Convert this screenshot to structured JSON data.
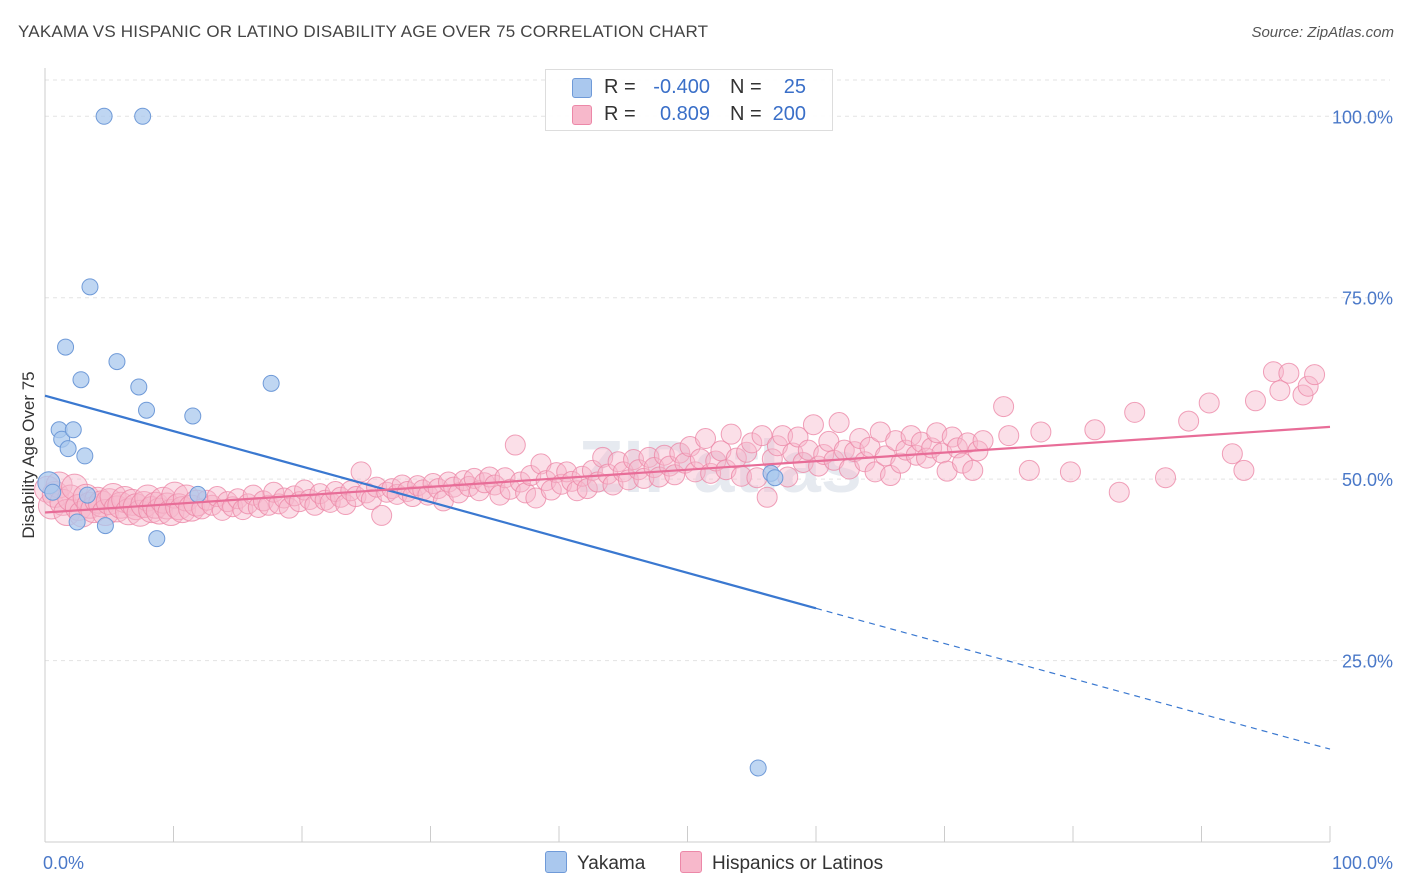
{
  "title": "YAKAMA VS HISPANIC OR LATINO DISABILITY AGE OVER 75 CORRELATION CHART",
  "source": "Source: ZipAtlas.com",
  "watermark": "ZIPatlas",
  "legend": {
    "rows": [
      {
        "r_label": "R =",
        "r_value": "-0.400",
        "n_label": "N =",
        "n_value": "25"
      },
      {
        "r_label": "R =",
        "r_value": "0.809",
        "n_label": "N =",
        "n_value": "200"
      }
    ]
  },
  "bottom_legend": [
    "Yakama",
    "Hispanics or Latinos"
  ],
  "colors": {
    "yakama_fill": "#aac8ee",
    "yakama_stroke": "#6f9ad8",
    "yakama_line": "#3a78d0",
    "hisp_fill": "#f7b8cb",
    "hisp_stroke": "#ec88a8",
    "hisp_line": "#e86d98",
    "tick_label": "#4a78c8"
  },
  "chart_data": {
    "type": "scatter",
    "xlabel": "",
    "ylabel": "Disability Age Over 75",
    "xlim": [
      0,
      100
    ],
    "ylim": [
      0,
      105
    ],
    "x_tick_labels": [
      "0.0%",
      "100.0%"
    ],
    "y_ticks": [
      25,
      50,
      75,
      100
    ],
    "y_tick_labels": [
      "25.0%",
      "50.0%",
      "75.0%",
      "100.0%"
    ],
    "grid": true,
    "series": [
      {
        "name": "Yakama",
        "points": [
          [
            0.3,
            49.5
          ],
          [
            0.6,
            48.2
          ],
          [
            1.1,
            56.8
          ],
          [
            1.3,
            55.5
          ],
          [
            1.6,
            68.2
          ],
          [
            1.8,
            54.2
          ],
          [
            2.2,
            56.8
          ],
          [
            2.5,
            44.1
          ],
          [
            2.8,
            63.7
          ],
          [
            3.1,
            53.2
          ],
          [
            3.3,
            47.8
          ],
          [
            3.5,
            76.5
          ],
          [
            4.6,
            100.0
          ],
          [
            4.7,
            43.6
          ],
          [
            5.6,
            66.2
          ],
          [
            7.3,
            62.7
          ],
          [
            7.6,
            100.0
          ],
          [
            7.9,
            59.5
          ],
          [
            8.7,
            41.8
          ],
          [
            11.5,
            58.7
          ],
          [
            11.9,
            47.9
          ],
          [
            17.6,
            63.2
          ],
          [
            55.5,
            10.2
          ],
          [
            56.5,
            50.8
          ],
          [
            56.8,
            50.2
          ]
        ],
        "trend": {
          "x": [
            0,
            60,
            100
          ],
          "y": [
            61.5,
            32.2,
            12.8
          ],
          "solid_until": 60
        }
      },
      {
        "name": "Hispanics or Latinos",
        "points": [
          [
            0.2,
            48.6
          ],
          [
            0.5,
            46.3
          ],
          [
            0.8,
            47.9
          ],
          [
            1.1,
            49.2
          ],
          [
            1.4,
            46.8
          ],
          [
            1.7,
            45.4
          ],
          [
            2.0,
            47.4
          ],
          [
            2.3,
            48.9
          ],
          [
            2.6,
            46.1
          ],
          [
            2.9,
            45.2
          ],
          [
            3.2,
            47.5
          ],
          [
            3.5,
            46.4
          ],
          [
            3.8,
            45.8
          ],
          [
            4.1,
            47.1
          ],
          [
            4.4,
            46.6
          ],
          [
            4.7,
            45.4
          ],
          [
            5.0,
            46.9
          ],
          [
            5.3,
            47.6
          ],
          [
            5.6,
            45.9
          ],
          [
            5.9,
            46.4
          ],
          [
            6.2,
            47.2
          ],
          [
            6.5,
            45.5
          ],
          [
            6.8,
            46.8
          ],
          [
            7.1,
            46.2
          ],
          [
            7.4,
            45.3
          ],
          [
            7.7,
            46.5
          ],
          [
            8.0,
            47.4
          ],
          [
            8.3,
            45.8
          ],
          [
            8.6,
            46.4
          ],
          [
            8.9,
            45.6
          ],
          [
            9.2,
            47.1
          ],
          [
            9.5,
            46.3
          ],
          [
            9.8,
            45.4
          ],
          [
            10.1,
            47.8
          ],
          [
            10.4,
            46.2
          ],
          [
            10.7,
            45.8
          ],
          [
            11.0,
            47.4
          ],
          [
            11.4,
            46.0
          ],
          [
            11.8,
            46.7
          ],
          [
            12.2,
            45.9
          ],
          [
            12.6,
            47.1
          ],
          [
            13.0,
            46.4
          ],
          [
            13.4,
            47.6
          ],
          [
            13.8,
            45.7
          ],
          [
            14.2,
            46.9
          ],
          [
            14.6,
            46.2
          ],
          [
            15.0,
            47.3
          ],
          [
            15.4,
            45.8
          ],
          [
            15.8,
            46.6
          ],
          [
            16.2,
            47.8
          ],
          [
            16.6,
            46.1
          ],
          [
            17.0,
            47.0
          ],
          [
            17.4,
            46.4
          ],
          [
            17.8,
            48.2
          ],
          [
            18.2,
            46.6
          ],
          [
            18.6,
            47.4
          ],
          [
            19.0,
            46.0
          ],
          [
            19.4,
            47.7
          ],
          [
            19.8,
            46.9
          ],
          [
            20.2,
            48.5
          ],
          [
            20.6,
            47.2
          ],
          [
            21.0,
            46.4
          ],
          [
            21.4,
            48.0
          ],
          [
            21.8,
            47.1
          ],
          [
            22.2,
            46.8
          ],
          [
            22.6,
            48.3
          ],
          [
            23.0,
            47.5
          ],
          [
            23.4,
            46.5
          ],
          [
            23.8,
            48.4
          ],
          [
            24.2,
            47.6
          ],
          [
            24.6,
            51.0
          ],
          [
            25.0,
            48.1
          ],
          [
            25.4,
            47.2
          ],
          [
            25.8,
            48.9
          ],
          [
            26.2,
            45.0
          ],
          [
            26.6,
            48.2
          ],
          [
            27.0,
            48.7
          ],
          [
            27.4,
            47.9
          ],
          [
            27.8,
            49.2
          ],
          [
            28.2,
            48.3
          ],
          [
            28.6,
            47.6
          ],
          [
            29.0,
            49.1
          ],
          [
            29.4,
            48.5
          ],
          [
            29.8,
            47.8
          ],
          [
            30.2,
            49.4
          ],
          [
            30.6,
            48.7
          ],
          [
            31.0,
            47.0
          ],
          [
            31.4,
            49.6
          ],
          [
            31.8,
            48.9
          ],
          [
            32.2,
            48.1
          ],
          [
            32.6,
            49.8
          ],
          [
            33.0,
            49.0
          ],
          [
            33.4,
            50.1
          ],
          [
            33.8,
            48.4
          ],
          [
            34.2,
            49.5
          ],
          [
            34.6,
            50.3
          ],
          [
            35.0,
            49.2
          ],
          [
            35.4,
            47.8
          ],
          [
            35.8,
            50.2
          ],
          [
            36.2,
            48.6
          ],
          [
            36.6,
            54.7
          ],
          [
            37.0,
            49.6
          ],
          [
            37.4,
            48.1
          ],
          [
            37.8,
            50.5
          ],
          [
            38.2,
            47.4
          ],
          [
            38.6,
            52.1
          ],
          [
            39.0,
            49.8
          ],
          [
            39.4,
            48.5
          ],
          [
            39.8,
            50.9
          ],
          [
            40.2,
            49.3
          ],
          [
            40.6,
            51.0
          ],
          [
            41.0,
            49.7
          ],
          [
            41.4,
            48.4
          ],
          [
            41.8,
            50.4
          ],
          [
            42.2,
            48.7
          ],
          [
            42.6,
            51.2
          ],
          [
            43.0,
            49.6
          ],
          [
            43.4,
            53.0
          ],
          [
            43.8,
            50.7
          ],
          [
            44.2,
            49.2
          ],
          [
            44.6,
            52.4
          ],
          [
            45.0,
            51.0
          ],
          [
            45.4,
            49.9
          ],
          [
            45.8,
            52.7
          ],
          [
            46.2,
            51.3
          ],
          [
            46.6,
            50.1
          ],
          [
            47.0,
            53.0
          ],
          [
            47.4,
            51.6
          ],
          [
            47.8,
            50.3
          ],
          [
            48.2,
            53.3
          ],
          [
            48.6,
            51.8
          ],
          [
            49.0,
            50.6
          ],
          [
            49.4,
            53.6
          ],
          [
            49.8,
            52.2
          ],
          [
            50.2,
            54.5
          ],
          [
            50.6,
            51.0
          ],
          [
            51.0,
            52.8
          ],
          [
            51.4,
            55.6
          ],
          [
            51.8,
            50.8
          ],
          [
            52.2,
            52.5
          ],
          [
            52.6,
            53.9
          ],
          [
            53.0,
            51.3
          ],
          [
            53.4,
            56.2
          ],
          [
            53.8,
            52.9
          ],
          [
            54.2,
            50.4
          ],
          [
            54.6,
            53.7
          ],
          [
            55.0,
            55.0
          ],
          [
            55.4,
            50.2
          ],
          [
            55.8,
            56.0
          ],
          [
            56.2,
            47.5
          ],
          [
            56.6,
            52.8
          ],
          [
            57.0,
            54.6
          ],
          [
            57.4,
            56.0
          ],
          [
            57.8,
            50.3
          ],
          [
            58.2,
            53.6
          ],
          [
            58.6,
            55.8
          ],
          [
            59.0,
            52.3
          ],
          [
            59.4,
            54.0
          ],
          [
            59.8,
            57.5
          ],
          [
            60.2,
            51.8
          ],
          [
            60.6,
            53.4
          ],
          [
            61.0,
            55.2
          ],
          [
            61.4,
            52.6
          ],
          [
            61.8,
            57.8
          ],
          [
            62.2,
            54.0
          ],
          [
            62.6,
            51.4
          ],
          [
            63.0,
            53.8
          ],
          [
            63.4,
            55.6
          ],
          [
            63.8,
            52.4
          ],
          [
            64.2,
            54.4
          ],
          [
            64.6,
            51.0
          ],
          [
            65.0,
            56.5
          ],
          [
            65.4,
            53.2
          ],
          [
            65.8,
            50.5
          ],
          [
            66.2,
            55.3
          ],
          [
            66.6,
            52.2
          ],
          [
            67.0,
            54.0
          ],
          [
            67.4,
            56.0
          ],
          [
            67.8,
            53.3
          ],
          [
            68.2,
            55.1
          ],
          [
            68.6,
            52.9
          ],
          [
            69.0,
            54.3
          ],
          [
            69.4,
            56.4
          ],
          [
            69.8,
            53.6
          ],
          [
            70.2,
            51.1
          ],
          [
            70.6,
            55.8
          ],
          [
            71.0,
            54.3
          ],
          [
            71.4,
            52.2
          ],
          [
            71.8,
            55.0
          ],
          [
            72.2,
            51.2
          ],
          [
            72.6,
            53.9
          ],
          [
            73.0,
            55.3
          ],
          [
            74.6,
            60.0
          ],
          [
            75.0,
            56.0
          ],
          [
            76.6,
            51.2
          ],
          [
            77.5,
            56.5
          ],
          [
            79.8,
            51.0
          ],
          [
            81.7,
            56.8
          ],
          [
            83.6,
            48.2
          ],
          [
            84.8,
            59.2
          ],
          [
            87.2,
            50.2
          ],
          [
            89.0,
            58.0
          ],
          [
            90.6,
            60.5
          ],
          [
            92.4,
            53.5
          ],
          [
            93.3,
            51.2
          ],
          [
            94.2,
            60.8
          ],
          [
            95.6,
            64.8
          ],
          [
            96.1,
            62.2
          ],
          [
            96.8,
            64.6
          ],
          [
            97.9,
            61.6
          ],
          [
            98.3,
            62.8
          ],
          [
            98.8,
            64.4
          ]
        ],
        "trend": {
          "x": [
            0,
            100
          ],
          "y": [
            45.4,
            57.2
          ]
        }
      }
    ]
  }
}
